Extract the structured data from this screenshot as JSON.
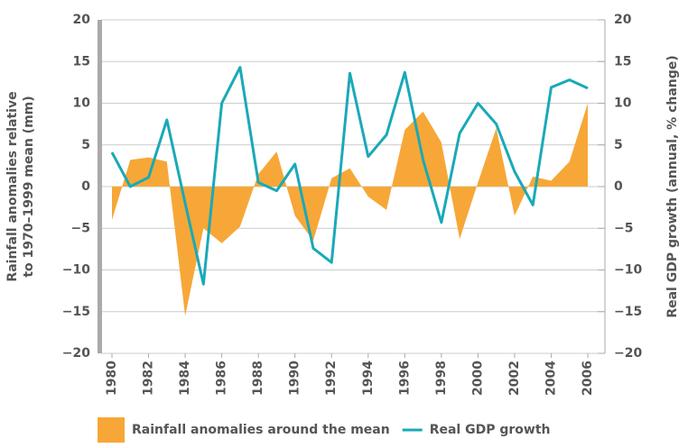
{
  "chart_data": {
    "type": "area-line",
    "x": [
      1980,
      1981,
      1982,
      1983,
      1984,
      1985,
      1986,
      1987,
      1988,
      1989,
      1990,
      1991,
      1992,
      1993,
      1994,
      1995,
      1996,
      1997,
      1998,
      1999,
      2000,
      2001,
      2002,
      2003,
      2004,
      2005,
      2006
    ],
    "xlim": [
      1979.4,
      2006.9
    ],
    "xticks": [
      1980,
      1982,
      1984,
      1986,
      1988,
      1990,
      1992,
      1994,
      1996,
      1998,
      2000,
      2002,
      2004,
      2006
    ],
    "ylabel": "Rainfall anomalies relative to 1970–1999 mean (mm)",
    "y2label": "Real GDP growth (annual, % change)",
    "ylim": [
      -20,
      20
    ],
    "yticks": [
      {
        "value": -20,
        "label": "−20"
      },
      {
        "value": -15,
        "label": "−15"
      },
      {
        "value": -10,
        "label": "−10"
      },
      {
        "value": -5,
        "label": "−5"
      },
      0,
      5,
      10,
      15,
      20
    ],
    "y2lim": [
      -20,
      20
    ],
    "y2ticks": [
      {
        "value": -20,
        "label": "−20"
      },
      {
        "value": -15,
        "label": "−15"
      },
      {
        "value": -10,
        "label": "−10"
      },
      {
        "value": -5,
        "label": "−5"
      },
      0,
      5,
      10,
      15,
      20
    ],
    "grid": true,
    "legend": "bottom",
    "series": [
      {
        "name": "Rainfall anomalies around the mean",
        "kind": "area",
        "color": "#f7a737",
        "values": [
          -4,
          3.2,
          3.5,
          3,
          -15.5,
          -5,
          -6.8,
          -4.8,
          1.5,
          4.2,
          -3.5,
          -6.5,
          1,
          2.2,
          -1.2,
          -2.8,
          6.8,
          9,
          5.3,
          -6.3,
          0.5,
          7,
          -3.5,
          1.2,
          0.7,
          3,
          10
        ]
      },
      {
        "name": "Real GDP growth",
        "kind": "line",
        "color": "#1aa9b8",
        "axis": "y2",
        "values": [
          4.1,
          0,
          1.1,
          8,
          -2,
          -11.7,
          10,
          14.3,
          0.5,
          -0.5,
          2.7,
          -7.4,
          -9.1,
          13.6,
          3.6,
          6.2,
          13.7,
          3.2,
          -4.3,
          6.4,
          10,
          7.5,
          1.8,
          -2.2,
          11.9,
          12.8,
          11.8
        ]
      }
    ]
  }
}
